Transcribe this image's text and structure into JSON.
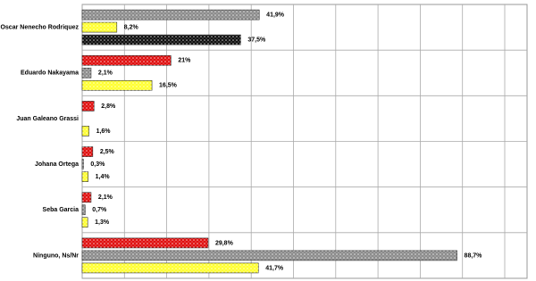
{
  "chart_data": {
    "type": "hbar",
    "categories": [
      "Oscar Nenecho Rodriquez",
      "Eduardo Nakayama",
      "Juan Galeano Grassi",
      "Johana Ortega",
      "Seba Garcia",
      "Ninguno, Ns/Nr"
    ],
    "series": [
      {
        "colors": [
          "#8c8c8c",
          "#e01010",
          "#e01010",
          "#e01010",
          "#e01010",
          "#e01010"
        ],
        "values": [
          41.9,
          21,
          2.8,
          2.5,
          2.1,
          29.8
        ],
        "value_labels": [
          "41,9%",
          "21%",
          "2,8%",
          "2,5%",
          "2,1%",
          "29,8%"
        ]
      },
      {
        "colors": [
          "#ffff33",
          "#8c8c8c",
          "#8c8c8c",
          "#8c8c8c",
          "#8c8c8c",
          "#8c8c8c"
        ],
        "values": [
          8.2,
          2.1,
          null,
          0.3,
          0.7,
          88.7
        ],
        "value_labels": [
          "8,2%",
          "2,1%",
          null,
          "0,3%",
          "0,7%",
          "88,7%"
        ]
      },
      {
        "colors": [
          "#111111",
          "#ffff33",
          "#ffff33",
          "#ffff33",
          "#ffff33",
          "#ffff33"
        ],
        "values": [
          37.5,
          16.5,
          1.6,
          1.4,
          1.3,
          41.7
        ],
        "value_labels": [
          "37,5%",
          "16,5%",
          "1,6%",
          "1,4%",
          "1,3%",
          "41,7%"
        ]
      }
    ],
    "xlim": [
      0,
      100
    ],
    "xticks": [
      0,
      10,
      20,
      30,
      40,
      50,
      60,
      70,
      80,
      90,
      100
    ],
    "grid": true
  }
}
